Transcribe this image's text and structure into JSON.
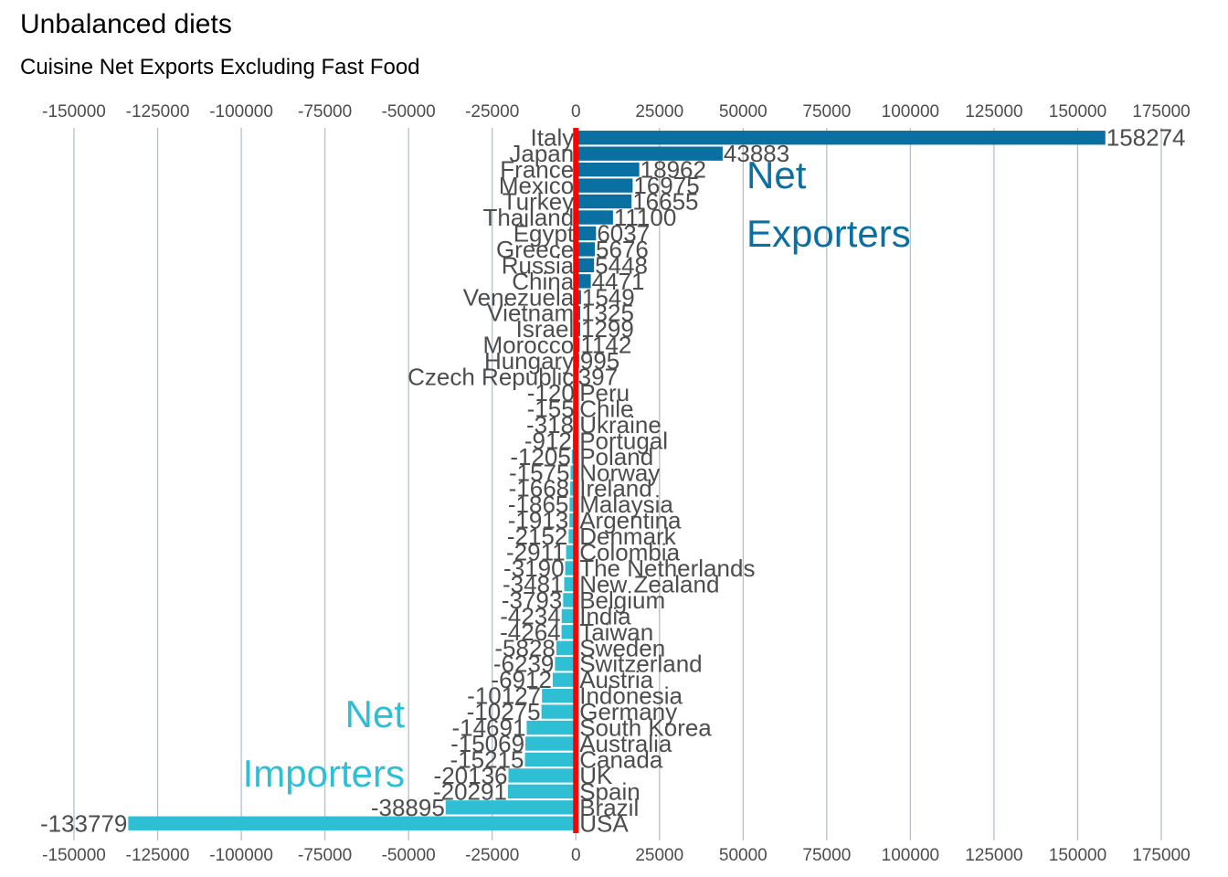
{
  "chart_data": {
    "type": "bar",
    "orientation": "horizontal",
    "title": "Unbalanced diets",
    "subtitle": "Cuisine Net Exports Excluding Fast Food",
    "xlim": [
      -150000,
      175000
    ],
    "xticks": [
      -150000,
      -125000,
      -100000,
      -75000,
      -50000,
      -25000,
      0,
      25000,
      50000,
      75000,
      100000,
      125000,
      150000,
      175000
    ],
    "grid": true,
    "zero_line_color": "#ff0000",
    "colors": {
      "exporter": "#0a6fa1",
      "importer": "#2ebfd5"
    },
    "annotations": [
      {
        "group": "exporter",
        "lines": [
          "Net",
          "Exporters"
        ]
      },
      {
        "group": "importer",
        "lines": [
          "Net",
          "Importers"
        ]
      }
    ],
    "categories": [
      "Italy",
      "Japan",
      "France",
      "Mexico",
      "Turkey",
      "Thailand",
      "Egypt",
      "Greece",
      "Russia",
      "China",
      "Venezuela",
      "Vietnam",
      "Israel",
      "Morocco",
      "Hungary",
      "Czech Republic",
      "Peru",
      "Chile",
      "Ukraine",
      "Portugal",
      "Poland",
      "Norway",
      "Ireland",
      "Malaysia",
      "Argentina",
      "Denmark",
      "Colombia",
      "The Netherlands",
      "New Zealand",
      "Belgium",
      "India",
      "Taiwan",
      "Sweden",
      "Switzerland",
      "Austria",
      "Indonesia",
      "Germany",
      "South Korea",
      "Australia",
      "Canada",
      "UK",
      "Spain",
      "Brazil",
      "USA"
    ],
    "values": [
      158274,
      43883,
      18962,
      16975,
      16655,
      11100,
      6037,
      5676,
      5448,
      4471,
      1549,
      1325,
      1299,
      1142,
      995,
      397,
      -120,
      -155,
      -318,
      -912,
      -1205,
      -1575,
      -1668,
      -1865,
      -1913,
      -2152,
      -2911,
      -3190,
      -3481,
      -3793,
      -4234,
      -4264,
      -5828,
      -6239,
      -6912,
      -10127,
      -10275,
      -14691,
      -15069,
      -15215,
      -20136,
      -20291,
      -38895,
      -133779
    ]
  }
}
